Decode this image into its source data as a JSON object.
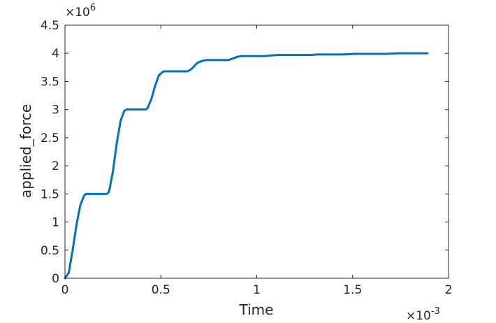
{
  "chart_data": {
    "type": "line",
    "xlabel": "Time",
    "ylabel": "applied_force",
    "xlim": [
      0,
      0.002
    ],
    "ylim": [
      0,
      4500000
    ],
    "x_ticks": [
      0,
      0.0005,
      0.001,
      0.0015,
      0.002
    ],
    "x_tick_labels": [
      "0",
      "0.5",
      "1",
      "1.5",
      "2"
    ],
    "y_ticks": [
      0,
      500000,
      1000000,
      1500000,
      2000000,
      2500000,
      3000000,
      3500000,
      4000000,
      4500000
    ],
    "y_tick_labels": [
      "0",
      "0.5",
      "1",
      "1.5",
      "2",
      "2.5",
      "3",
      "3.5",
      "4",
      "4.5"
    ],
    "x_exponent": {
      "base": "×10",
      "power": "-3"
    },
    "y_exponent": {
      "base": "×10",
      "power": "6"
    },
    "grid": false,
    "series": [
      {
        "color": "#0072BD",
        "x": [
          0,
          2e-05,
          4e-05,
          6e-05,
          8e-05,
          0.0001,
          0.00011,
          0.00013,
          0.00016,
          0.0002,
          0.00022,
          0.00023,
          0.00025,
          0.00027,
          0.00029,
          0.00031,
          0.00032,
          0.00034,
          0.00038,
          0.00042,
          0.00043,
          0.00045,
          0.00047,
          0.00049,
          0.00051,
          0.00052,
          0.00055,
          0.0006,
          0.00064,
          0.00066,
          0.00069,
          0.00072,
          0.00074,
          0.00077,
          0.00082,
          0.00085,
          0.00087,
          0.0009,
          0.00092,
          0.00096,
          0.00102,
          0.00104,
          0.00107,
          0.00111,
          0.00115,
          0.00122,
          0.00128,
          0.00132,
          0.00136,
          0.00145,
          0.00151,
          0.00156,
          0.0016,
          0.00168,
          0.00174,
          0.0018,
          0.00189
        ],
        "y": [
          0,
          100000,
          500000,
          950000,
          1300000,
          1470000,
          1500000,
          1500000,
          1500000,
          1500000,
          1500000,
          1540000,
          1900000,
          2400000,
          2800000,
          2980000,
          3000000,
          3000000,
          3000000,
          3000000,
          3020000,
          3180000,
          3420000,
          3610000,
          3670000,
          3680000,
          3680000,
          3680000,
          3680000,
          3720000,
          3830000,
          3870000,
          3880000,
          3880000,
          3880000,
          3880000,
          3900000,
          3940000,
          3950000,
          3950000,
          3950000,
          3950000,
          3960000,
          3970000,
          3970000,
          3970000,
          3970000,
          3980000,
          3980000,
          3980000,
          3990000,
          3990000,
          3990000,
          3990000,
          4000000,
          4000000,
          4000000
        ]
      }
    ]
  }
}
